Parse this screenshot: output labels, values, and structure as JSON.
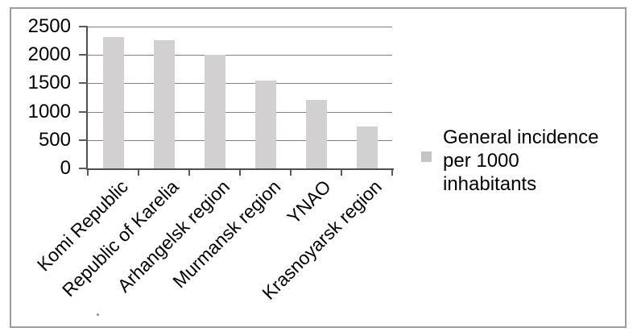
{
  "chart_data": {
    "type": "bar",
    "title": "",
    "categories": [
      "Komi Republic",
      "Republic of Karelia",
      "Arhangelsk region",
      "Murmansk region",
      "YNAO",
      "Krasnoyarsk region"
    ],
    "values": [
      2310,
      2265,
      2000,
      1555,
      1205,
      735
    ],
    "series_name": "General incidence per 1000 inhabitants",
    "xlabel": "",
    "ylabel": "",
    "ylim": [
      0,
      2500
    ],
    "yticks": [
      0,
      500,
      1000,
      1500,
      2000,
      2500
    ],
    "ytick_labels": [
      "0",
      "500",
      "1000",
      "1500",
      "2000",
      "2500"
    ],
    "xtick_rotation_deg": 45,
    "grid": true,
    "legend_position": "right",
    "legend_lines": [
      "General incidence",
      "per 1000",
      "inhabitants"
    ],
    "colors": {
      "bar_fill": "#d2d0d0",
      "gridline": "#828282",
      "axis": "#4f4f4f",
      "tick": "#5a5a5a",
      "frame_border": "#9c9c9c",
      "text": "#000000",
      "background": "#ffffff",
      "legend_marker": "#c6c4c4"
    }
  }
}
